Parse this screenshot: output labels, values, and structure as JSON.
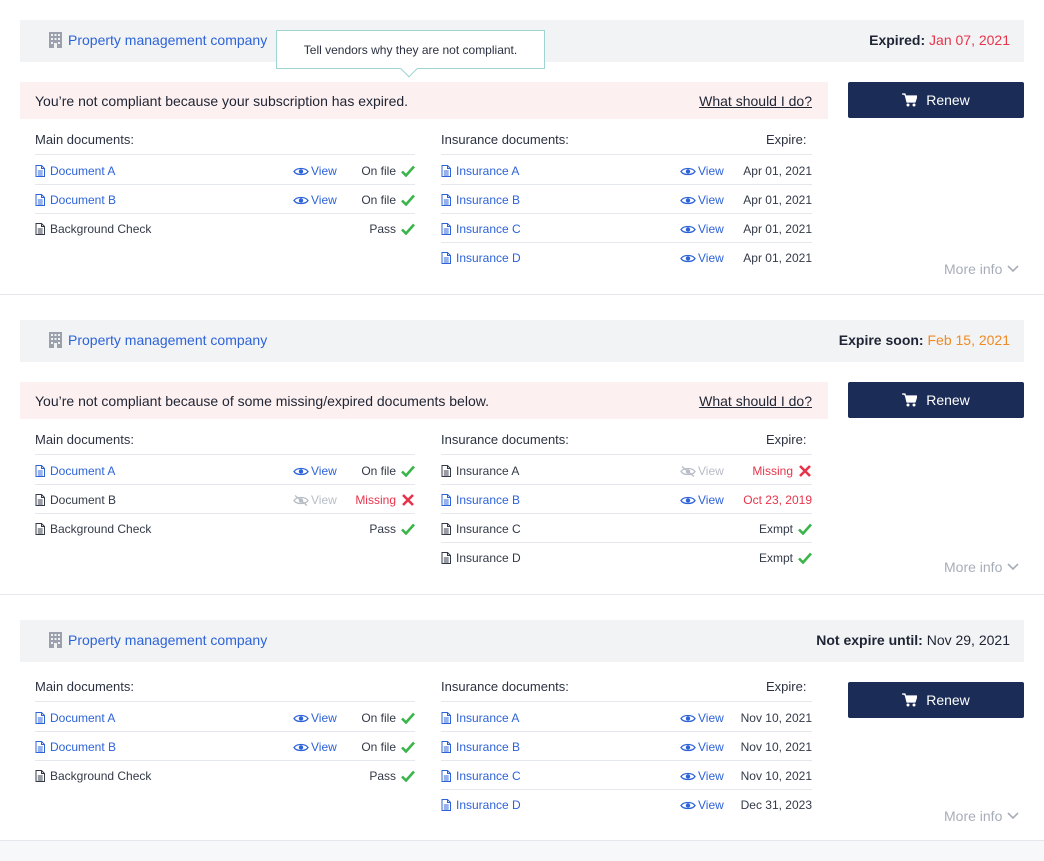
{
  "sections": [
    {
      "company": "Property management company",
      "status_label": "Expired:",
      "status_date": "Jan 07, 2021",
      "alert_message": "You’re not compliant because your subscription has expired.",
      "alert_help": "What should I do?",
      "renew_label": "Renew",
      "main_header": "Main documents:",
      "insurance_header": "Insurance documents:",
      "expire_header": "Expire:",
      "main_docs": [
        {
          "name": "Document A",
          "view": "View",
          "status": "On file"
        },
        {
          "name": "Document B",
          "view": "View",
          "status": "On file"
        },
        {
          "name": "Background Check",
          "status": "Pass"
        }
      ],
      "insurance_docs": [
        {
          "name": "Insurance A",
          "view": "View",
          "status": "Apr 01, 2021"
        },
        {
          "name": "Insurance B",
          "view": "View",
          "status": "Apr 01, 2021"
        },
        {
          "name": "Insurance C",
          "view": "View",
          "status": "Apr 01, 2021"
        },
        {
          "name": "Insurance D",
          "view": "View",
          "status": "Apr 01, 2021"
        }
      ],
      "more_info": "More info"
    },
    {
      "company": "Property management company",
      "status_label": "Expire soon:",
      "status_date": "Feb 15, 2021",
      "alert_message": "You’re not compliant because of some missing/expired documents below.",
      "alert_help": "What should I do?",
      "renew_label": "Renew",
      "main_header": "Main documents:",
      "insurance_header": "Insurance documents:",
      "expire_header": "Expire:",
      "main_docs": [
        {
          "name": "Document A",
          "view": "View",
          "status": "On file"
        },
        {
          "name": "Document B",
          "view": "View",
          "status": "Missing"
        },
        {
          "name": "Background Check",
          "status": "Pass"
        }
      ],
      "insurance_docs": [
        {
          "name": "Insurance A",
          "view": "View",
          "status": "Missing"
        },
        {
          "name": "Insurance B",
          "view": "View",
          "status": "Oct 23, 2019"
        },
        {
          "name": "Insurance C",
          "status": "Exmpt"
        },
        {
          "name": "Insurance D",
          "status": "Exmpt"
        }
      ],
      "more_info": "More info"
    },
    {
      "company": "Property management company",
      "status_label": "Not expire until:",
      "status_date": "Nov 29, 2021",
      "renew_label": "Renew",
      "main_header": "Main documents:",
      "insurance_header": "Insurance documents:",
      "expire_header": "Expire:",
      "main_docs": [
        {
          "name": "Document A",
          "view": "View",
          "status": "On file"
        },
        {
          "name": "Document B",
          "view": "View",
          "status": "On file"
        },
        {
          "name": "Background Check",
          "status": "Pass"
        }
      ],
      "insurance_docs": [
        {
          "name": "Insurance A",
          "view": "View",
          "status": "Nov 10, 2021"
        },
        {
          "name": "Insurance B",
          "view": "View",
          "status": "Nov 10, 2021"
        },
        {
          "name": "Insurance C",
          "view": "View",
          "status": "Nov 10, 2021"
        },
        {
          "name": "Insurance D",
          "view": "View",
          "status": "Dec 31, 2023"
        }
      ],
      "more_info": "More info"
    }
  ],
  "tooltip": "Tell vendors why they are not compliant.",
  "colors": {
    "link": "#2d63d8",
    "expired": "#e8344b",
    "expire_soon": "#f08a24",
    "ok_check": "#3bb54a",
    "missing": "#e8344b",
    "renew_bg": "#1b2c57",
    "alert_bg": "#fdf0f0"
  },
  "icons": {
    "company": "building-icon",
    "document": "document-icon",
    "view": "eye-icon",
    "view_disabled": "eye-slash-icon",
    "ok": "check-icon",
    "missing": "x-icon",
    "renew": "cart-icon",
    "more": "chevron-down-icon"
  }
}
